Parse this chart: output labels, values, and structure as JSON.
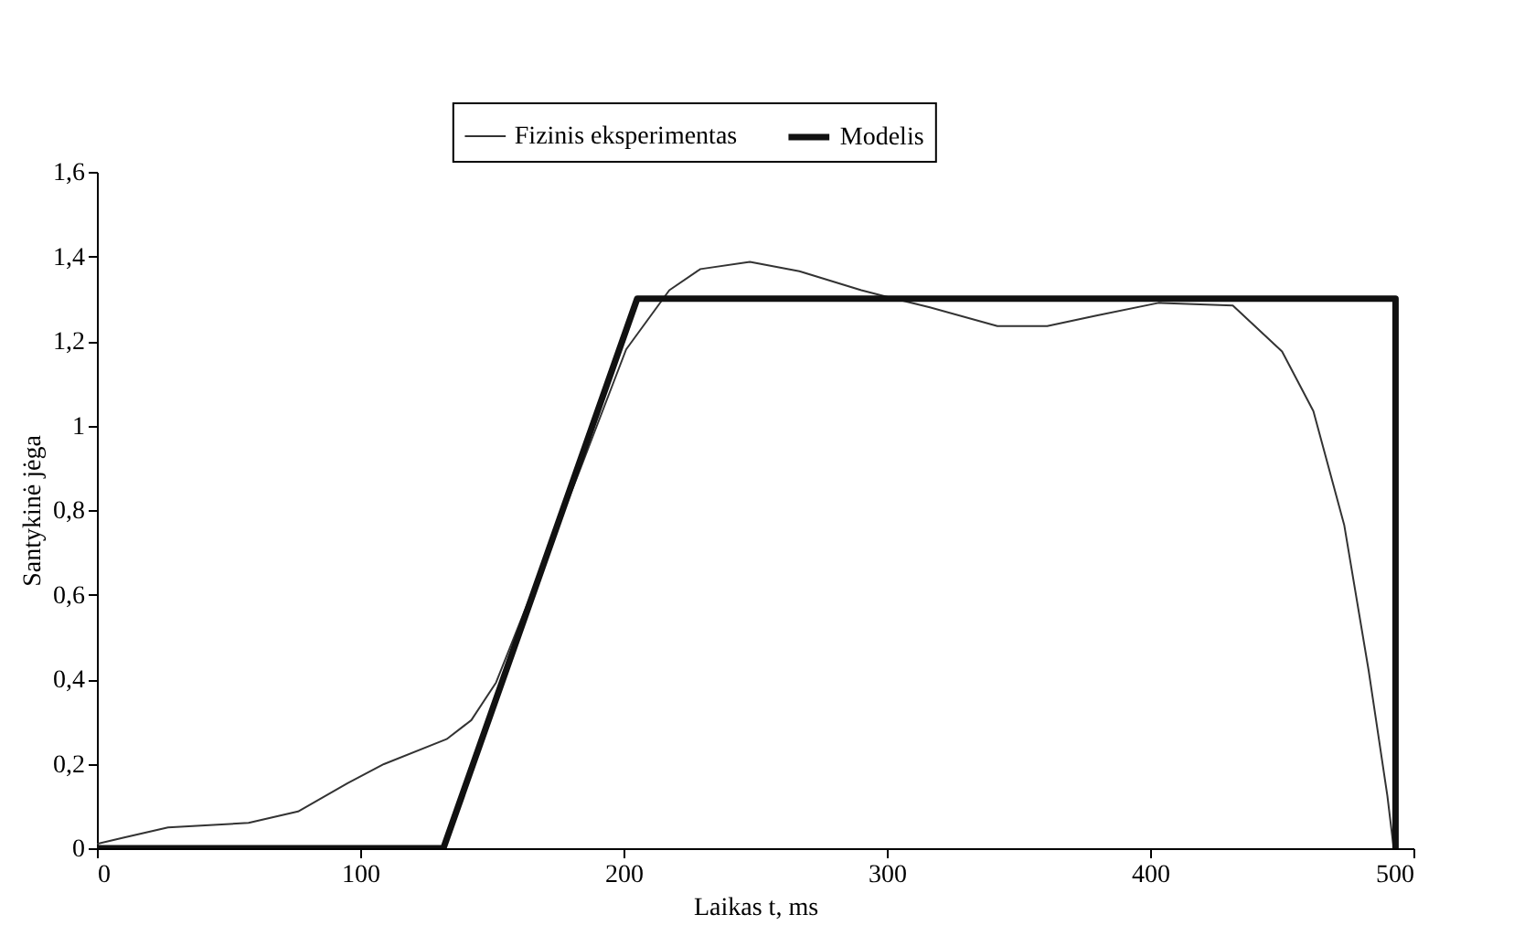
{
  "chart_data": {
    "type": "line",
    "xlabel": "Laikas t, ms",
    "ylabel": "Santykinė jėga",
    "xlim": [
      0,
      500
    ],
    "xticks": [
      0,
      100,
      200,
      300,
      400,
      500
    ],
    "ylim": [
      0,
      1.6
    ],
    "yticks": [
      0,
      {
        "value": 0.2,
        "label": "0,2"
      },
      {
        "value": 0.4,
        "label": "0,4"
      },
      {
        "value": 0.6,
        "label": "0,6"
      },
      {
        "value": 0.8,
        "label": "0,8"
      },
      1,
      {
        "value": 1.2,
        "label": "1,2"
      },
      {
        "value": 1.4,
        "label": "1,4"
      },
      {
        "value": 1.6,
        "label": "1,6"
      }
    ],
    "grid": false,
    "legend": "top",
    "line_style": "solid",
    "marker": "none",
    "series": [
      {
        "name": "Fizinis eksperimentas",
        "color": "#333333",
        "x": [
          0,
          10,
          27,
          57.6,
          76.4,
          95.2,
          109,
          132.8,
          142.2,
          151.6,
          170,
          185,
          201,
          217.4,
          229.2,
          248,
          266.8,
          290.3,
          299.7,
          316,
          342,
          360.9,
          379.6,
          403.2,
          431.4,
          450.1,
          462,
          473.7,
          483,
          490.1,
          492.5
        ],
        "values": [
          0.01,
          0.025,
          0.049,
          0.06,
          0.087,
          0.154,
          0.199,
          0.258,
          0.303,
          0.392,
          0.68,
          0.92,
          1.18,
          1.32,
          1.37,
          1.387,
          1.365,
          1.32,
          1.305,
          1.28,
          1.235,
          1.235,
          1.26,
          1.29,
          1.284,
          1.175,
          1.034,
          0.765,
          0.42,
          0.124,
          0
        ]
      },
      {
        "name": "Modelis",
        "color": "#111111",
        "x": [
          0,
          131.6,
          205.2,
          493.2,
          493.2
        ],
        "values": [
          0,
          0,
          1.3,
          1.3,
          0
        ]
      }
    ]
  }
}
